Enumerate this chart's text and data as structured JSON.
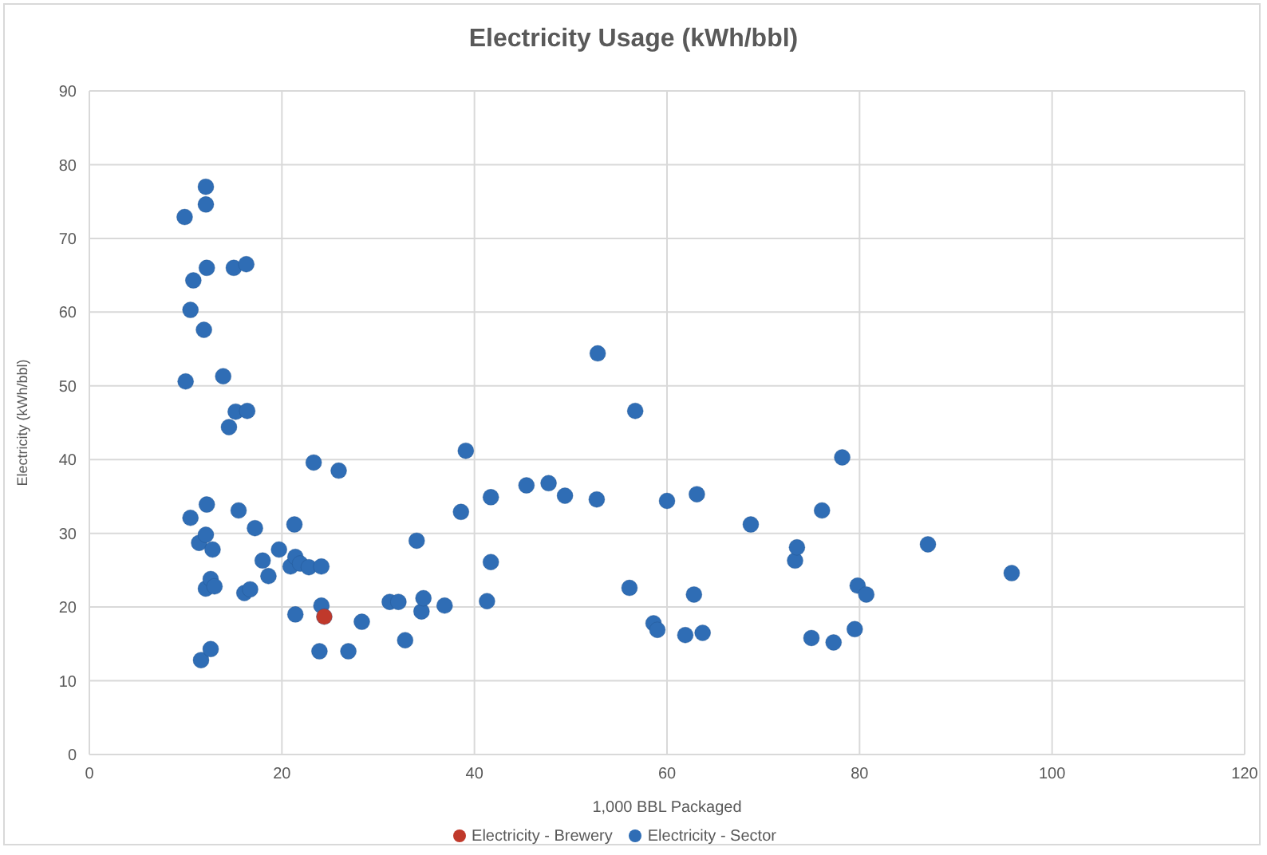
{
  "chart_data": {
    "type": "scatter",
    "title": "Electricity Usage (kWh/bbl)",
    "xlabel": "1,000 BBL Packaged",
    "ylabel": "Electricity (kWh/bbl)",
    "xlim": [
      0,
      120
    ],
    "xticks": [
      0,
      20,
      40,
      60,
      80,
      100,
      120
    ],
    "ylim": [
      0,
      90
    ],
    "yticks": [
      0,
      10,
      20,
      30,
      40,
      50,
      60,
      70,
      80,
      90
    ],
    "grid": true,
    "legend": "bottom",
    "marker": "circle",
    "series": [
      {
        "name": "Electricity - Sector",
        "color": "#2f6db5",
        "x": [
          9.9,
          12.1,
          12.1,
          10.8,
          12.2,
          15.0,
          16.3,
          10.5,
          11.9,
          10.0,
          13.9,
          14.5,
          15.2,
          16.4,
          10.5,
          12.2,
          15.5,
          17.2,
          11.4,
          12.1,
          12.8,
          12.1,
          12.6,
          13.0,
          16.1,
          16.7,
          18.0,
          18.6,
          19.7,
          21.3,
          20.9,
          21.4,
          21.9,
          22.8,
          24.1,
          21.4,
          24.1,
          23.3,
          25.9,
          11.6,
          12.6,
          23.9,
          26.9,
          28.3,
          31.2,
          32.1,
          32.8,
          34.0,
          34.5,
          34.7,
          36.9,
          38.6,
          39.1,
          41.3,
          41.7,
          41.7,
          45.4,
          47.7,
          49.4,
          52.7,
          52.8,
          56.1,
          56.7,
          58.6,
          59.0,
          60.0,
          61.9,
          62.8,
          63.1,
          63.7,
          68.7,
          73.3,
          73.5,
          75.0,
          76.1,
          77.3,
          78.2,
          79.5,
          79.8,
          80.7,
          87.1,
          95.8
        ],
        "values": [
          72.9,
          77.0,
          74.6,
          64.3,
          66.0,
          66.0,
          66.5,
          60.3,
          57.6,
          50.6,
          51.3,
          44.4,
          46.5,
          46.6,
          32.1,
          33.9,
          33.1,
          30.7,
          28.7,
          29.8,
          27.8,
          22.5,
          23.8,
          22.8,
          21.9,
          22.4,
          26.3,
          24.2,
          27.8,
          31.2,
          25.5,
          26.8,
          25.9,
          25.4,
          25.5,
          19.0,
          20.2,
          39.6,
          38.5,
          12.8,
          14.3,
          14.0,
          14.0,
          18.0,
          20.7,
          20.7,
          15.5,
          29.0,
          19.4,
          21.2,
          20.2,
          32.9,
          41.2,
          20.8,
          26.1,
          34.9,
          36.5,
          36.8,
          35.1,
          34.6,
          54.4,
          22.6,
          46.6,
          17.8,
          16.9,
          34.4,
          16.2,
          21.7,
          35.3,
          16.5,
          31.2,
          26.3,
          28.1,
          15.8,
          33.1,
          15.2,
          40.3,
          17.0,
          22.9,
          21.7,
          28.5,
          24.6
        ]
      },
      {
        "name": "Electricity - Brewery",
        "color": "#c0392b",
        "x": [
          24.4
        ],
        "values": [
          18.7
        ]
      }
    ]
  }
}
